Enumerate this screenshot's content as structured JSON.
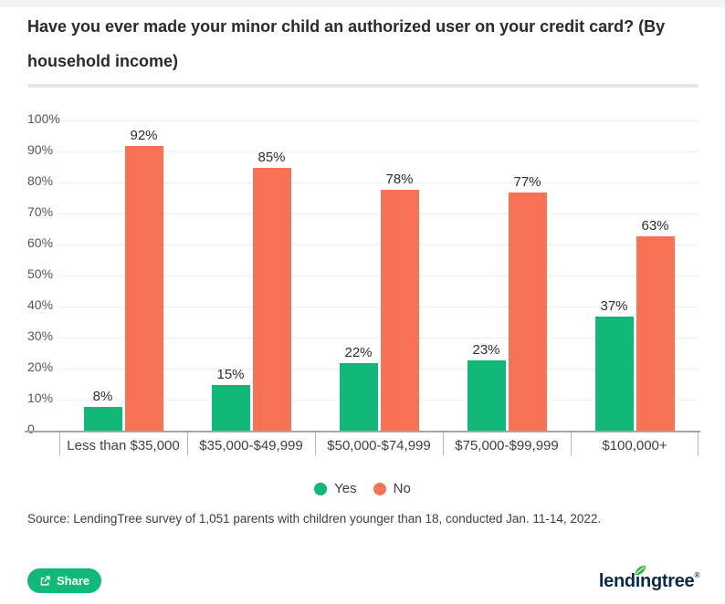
{
  "header": {
    "title": "Have you ever made your minor child an authorized user on your credit card? (By household income)"
  },
  "chart_data": {
    "type": "bar",
    "title": "Have you ever made your minor child an authorized user on your credit card? (By household income)",
    "categories": [
      "Less than $35,000",
      "$35,000-$49,999",
      "$50,000-$74,999",
      "$75,000-$99,999",
      "$100,000+"
    ],
    "series": [
      {
        "name": "Yes",
        "color": "#12b878",
        "values": [
          8,
          15,
          22,
          23,
          37
        ]
      },
      {
        "name": "No",
        "color": "#f87355",
        "values": [
          92,
          85,
          78,
          77,
          63
        ]
      }
    ],
    "xlabel": "",
    "ylabel": "",
    "ylim": [
      0,
      100
    ],
    "ytick_step": 10,
    "ytick_suffix": "%",
    "zero_tick_label": "0",
    "value_label_suffix": "%",
    "grid": true,
    "legend_position": "bottom"
  },
  "source": {
    "text": "Source: LendingTree survey of 1,051 parents with children younger than 18, conducted Jan. 11-14, 2022."
  },
  "footer": {
    "share_label": "Share",
    "brand_name": "lendingtree",
    "brand_mark": "®"
  },
  "colors": {
    "bar_yes": "#12b878",
    "bar_no": "#f87355",
    "accent_green": "#12b878",
    "logo_navy": "#0b2a48",
    "leaf_green": "#33b148",
    "divider_gray": "#e6e6e6"
  }
}
